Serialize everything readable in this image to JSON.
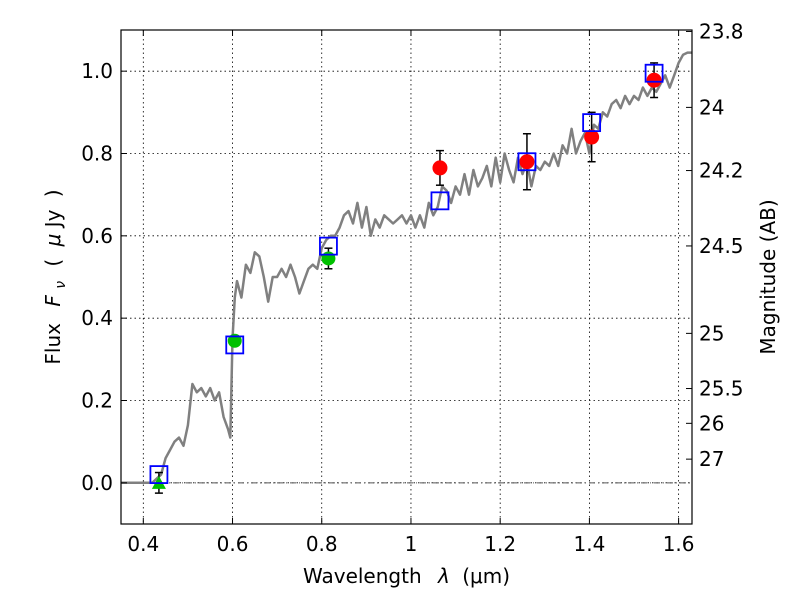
{
  "chart_data": {
    "type": "scatter",
    "xlabel": "Wavelength  λ (μm)",
    "ylabel": "Flux  F_ν  ( μJy )",
    "ylabel_parts": {
      "prefix": "Flux",
      "symbol": "F",
      "subscript": "ν",
      "open": "(",
      "unit_mu": "μ",
      "unit": "Jy",
      "close": ")"
    },
    "xlabel_parts": {
      "word": "Wavelength",
      "symbol": "λ",
      "unit": "(μm)"
    },
    "y2label": "Magnitude (AB)",
    "xlim": [
      0.35,
      1.63
    ],
    "ylim": [
      -0.1,
      1.1
    ],
    "grid": true,
    "x_ticks": [
      0.4,
      0.6,
      0.8,
      1.0,
      1.2,
      1.4,
      1.6
    ],
    "x_tick_labels": [
      "0.4",
      "0.6",
      "0.8",
      "1",
      "1.2",
      "1.4",
      "1.6"
    ],
    "y_ticks": [
      0.0,
      0.2,
      0.4,
      0.6,
      0.8,
      1.0
    ],
    "y_tick_labels": [
      "0.0",
      "0.2",
      "0.4",
      "0.6",
      "0.8",
      "1.0"
    ],
    "mag_ticks": [
      23.8,
      24,
      24.2,
      24.5,
      25,
      25.5,
      26,
      27
    ],
    "mag_tick_labels": [
      "23.8",
      "24",
      "24.2",
      "24.5",
      "25",
      "25.5",
      "26",
      "27"
    ],
    "colors": {
      "model": "#808080",
      "green": "#00c000",
      "red": "#ff0000",
      "blue": "#0000ff",
      "errorbar": "#000000"
    },
    "series": [
      {
        "marker": "line",
        "x": [
          0.35,
          0.42,
          0.44,
          0.45,
          0.46,
          0.47,
          0.48,
          0.49,
          0.5,
          0.51,
          0.52,
          0.53,
          0.54,
          0.55,
          0.56,
          0.57,
          0.58,
          0.59,
          0.595,
          0.6,
          0.605,
          0.61,
          0.62,
          0.63,
          0.64,
          0.65,
          0.66,
          0.67,
          0.68,
          0.69,
          0.7,
          0.71,
          0.72,
          0.73,
          0.74,
          0.75,
          0.76,
          0.77,
          0.78,
          0.79,
          0.8,
          0.81,
          0.82,
          0.83,
          0.84,
          0.85,
          0.86,
          0.87,
          0.88,
          0.89,
          0.9,
          0.91,
          0.92,
          0.93,
          0.94,
          0.95,
          0.96,
          0.97,
          0.98,
          0.99,
          1.0,
          1.01,
          1.02,
          1.03,
          1.04,
          1.05,
          1.06,
          1.07,
          1.08,
          1.09,
          1.1,
          1.11,
          1.12,
          1.13,
          1.14,
          1.15,
          1.16,
          1.17,
          1.18,
          1.19,
          1.2,
          1.21,
          1.22,
          1.23,
          1.24,
          1.25,
          1.26,
          1.27,
          1.28,
          1.29,
          1.3,
          1.31,
          1.32,
          1.33,
          1.34,
          1.35,
          1.36,
          1.37,
          1.38,
          1.39,
          1.4,
          1.41,
          1.42,
          1.43,
          1.44,
          1.45,
          1.46,
          1.47,
          1.48,
          1.49,
          1.5,
          1.51,
          1.52,
          1.53,
          1.54,
          1.55,
          1.56,
          1.57,
          1.58,
          1.59,
          1.6,
          1.61,
          1.62,
          1.63
        ],
        "y": [
          0.0,
          0.0,
          0.02,
          0.06,
          0.08,
          0.1,
          0.11,
          0.09,
          0.14,
          0.24,
          0.22,
          0.23,
          0.21,
          0.23,
          0.2,
          0.22,
          0.16,
          0.13,
          0.11,
          0.35,
          0.45,
          0.49,
          0.45,
          0.53,
          0.51,
          0.56,
          0.55,
          0.5,
          0.44,
          0.5,
          0.5,
          0.52,
          0.5,
          0.53,
          0.5,
          0.46,
          0.49,
          0.52,
          0.53,
          0.52,
          0.57,
          0.59,
          0.6,
          0.6,
          0.62,
          0.65,
          0.66,
          0.63,
          0.68,
          0.62,
          0.67,
          0.6,
          0.64,
          0.62,
          0.65,
          0.64,
          0.63,
          0.64,
          0.65,
          0.63,
          0.65,
          0.62,
          0.65,
          0.62,
          0.68,
          0.65,
          0.67,
          0.72,
          0.71,
          0.68,
          0.72,
          0.7,
          0.75,
          0.7,
          0.76,
          0.72,
          0.74,
          0.77,
          0.72,
          0.79,
          0.73,
          0.8,
          0.76,
          0.73,
          0.79,
          0.75,
          0.78,
          0.72,
          0.77,
          0.76,
          0.78,
          0.77,
          0.8,
          0.77,
          0.82,
          0.8,
          0.86,
          0.8,
          0.83,
          0.85,
          0.8,
          0.87,
          0.86,
          0.9,
          0.89,
          0.92,
          0.93,
          0.91,
          0.94,
          0.92,
          0.94,
          0.93,
          0.96,
          0.94,
          0.96,
          0.95,
          0.97,
          0.99,
          0.96,
          0.99,
          1.02,
          1.04,
          1.045,
          1.045
        ]
      },
      {
        "marker": "green-circle",
        "x": [
          0.605,
          0.815
        ],
        "y": [
          0.345,
          0.545
        ],
        "err": [
          0.01,
          0.025
        ]
      },
      {
        "marker": "green-triangle",
        "x": [
          0.435
        ],
        "y": [
          0.0
        ],
        "err": [
          0.025
        ]
      },
      {
        "marker": "red-circle",
        "x": [
          1.065,
          1.26,
          1.405,
          1.545
        ],
        "y": [
          0.765,
          0.78,
          0.84,
          0.978
        ],
        "err": [
          0.042,
          0.068,
          0.06,
          0.042
        ]
      },
      {
        "marker": "blue-open-square",
        "x": [
          0.435,
          0.605,
          0.815,
          1.065,
          1.26,
          1.405,
          1.545
        ],
        "y": [
          0.02,
          0.335,
          0.575,
          0.685,
          0.78,
          0.875,
          0.995
        ]
      }
    ]
  }
}
